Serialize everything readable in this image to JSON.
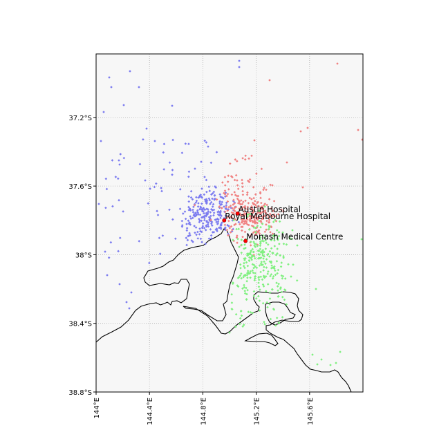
{
  "map": {
    "projection": "plate-carree",
    "lon_range": [
      144.0,
      146.0
    ],
    "lat_range": [
      -38.8,
      -36.83
    ],
    "background_color": "#f7f7f7",
    "grid": true,
    "grid_style": "dotted",
    "x_ticks": [
      {
        "value": 144.0,
        "label": "144°E"
      },
      {
        "value": 144.4,
        "label": "144.4°E"
      },
      {
        "value": 144.8,
        "label": "144.8°E"
      },
      {
        "value": 145.2,
        "label": "145.2°E"
      },
      {
        "value": 145.6,
        "label": "145.6°E"
      }
    ],
    "y_ticks": [
      {
        "value": -37.2,
        "label": "37.2°S"
      },
      {
        "value": -37.6,
        "label": "37.6°S"
      },
      {
        "value": -38.0,
        "label": "38°S"
      },
      {
        "value": -38.4,
        "label": "38.4°S"
      },
      {
        "value": -38.8,
        "label": "38.8°S"
      }
    ],
    "hospitals": [
      {
        "name": "Austin Hospital",
        "lon": 145.06,
        "lat": -37.76,
        "color": "#ff0000"
      },
      {
        "name": "Royal Melbourne Hospital",
        "lon": 144.96,
        "lat": -37.8,
        "color": "#ff0000"
      },
      {
        "name": "Monash Medical Centre",
        "lon": 145.12,
        "lat": -37.92,
        "color": "#ff0000"
      }
    ],
    "catchments": [
      {
        "hospital": "Royal Melbourne Hospital",
        "color": "#7b7bf0"
      },
      {
        "hospital": "Austin Hospital",
        "color": "#f08080"
      },
      {
        "hospital": "Monash Medical Centre",
        "color": "#80f080"
      }
    ],
    "coastline_color": "#000000"
  }
}
